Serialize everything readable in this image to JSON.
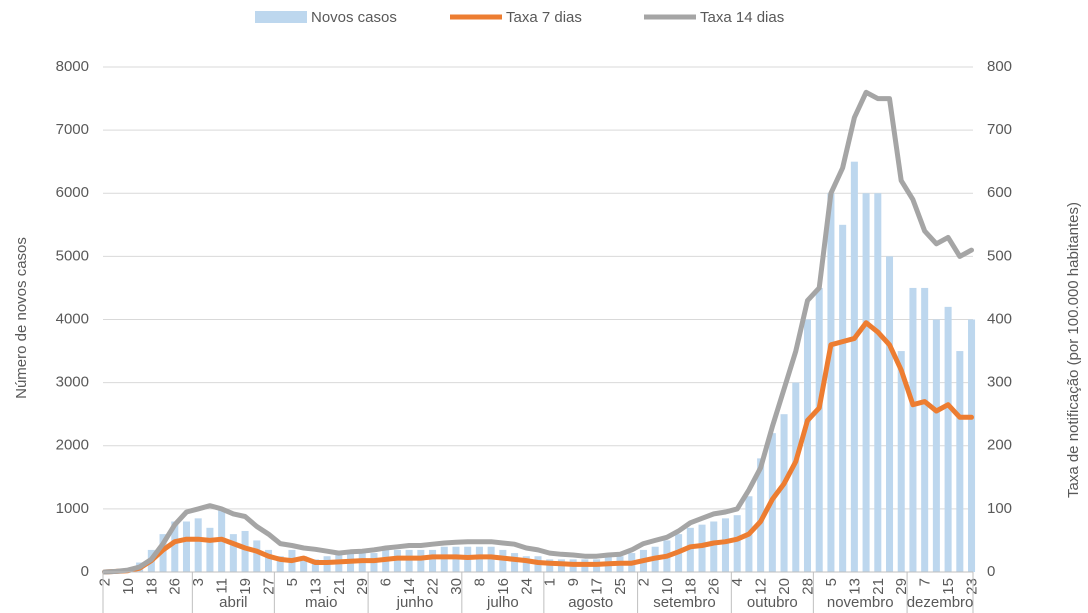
{
  "chart_data": {
    "type": "combo",
    "y_label": "Número de novos casos",
    "y2_label": "Taxa de notificação (por 100.000 habitantes)",
    "groups": [
      {
        "categories": [
          "2",
          null,
          "10",
          null,
          "18",
          null,
          "26",
          null
        ]
      },
      {
        "name": "abril",
        "categories": [
          "3",
          null,
          "11",
          null,
          "19",
          null,
          "27"
        ]
      },
      {
        "name": "maio",
        "categories": [
          null,
          "5",
          null,
          "13",
          null,
          "21",
          null,
          "29"
        ]
      },
      {
        "name": "junho",
        "categories": [
          null,
          "6",
          null,
          "14",
          null,
          "22",
          null,
          "30"
        ]
      },
      {
        "name": "julho",
        "categories": [
          null,
          "8",
          null,
          "16",
          null,
          "24",
          null
        ]
      },
      {
        "name": "agosto",
        "categories": [
          "1",
          null,
          "9",
          null,
          "17",
          null,
          "25",
          null
        ]
      },
      {
        "name": "setembro",
        "categories": [
          "2",
          null,
          "10",
          null,
          "18",
          null,
          "26",
          null
        ]
      },
      {
        "name": "outubro",
        "categories": [
          "4",
          null,
          "12",
          null,
          "20",
          null,
          "28"
        ]
      },
      {
        "name": "novembro",
        "categories": [
          null,
          "5",
          null,
          "13",
          null,
          "21",
          null,
          "29"
        ]
      },
      {
        "name": "dezembro",
        "categories": [
          null,
          "7",
          null,
          "15",
          null,
          "23"
        ]
      }
    ],
    "series": [
      {
        "name": "Novos casos",
        "type": "bar",
        "color": "#bdd7ee",
        "values": [
          0,
          10,
          40,
          150,
          350,
          600,
          800,
          800,
          850,
          700,
          1000,
          600,
          650,
          500,
          350,
          250,
          350,
          250,
          200,
          250,
          300,
          300,
          300,
          300,
          350,
          350,
          350,
          350,
          350,
          400,
          400,
          400,
          400,
          400,
          350,
          300,
          250,
          250,
          200,
          200,
          200,
          200,
          200,
          250,
          250,
          300,
          350,
          400,
          500,
          600,
          700,
          750,
          800,
          850,
          900,
          1200,
          1800,
          2200,
          2500,
          3000,
          4000,
          4500,
          6000,
          5500,
          6500,
          6000,
          6000,
          5000,
          3500,
          4500,
          4500,
          4000,
          4200,
          3500,
          4000
        ]
      },
      {
        "name": "Taxa 7 dias",
        "type": "line",
        "axis": "y2",
        "color": "#ed7d31",
        "values": [
          0,
          1,
          2,
          6,
          18,
          35,
          48,
          52,
          52,
          50,
          52,
          45,
          38,
          33,
          25,
          20,
          18,
          22,
          15,
          15,
          16,
          17,
          18,
          18,
          20,
          22,
          22,
          22,
          24,
          24,
          24,
          23,
          24,
          24,
          22,
          20,
          18,
          15,
          14,
          13,
          12,
          12,
          12,
          13,
          14,
          14,
          18,
          22,
          25,
          32,
          40,
          42,
          46,
          48,
          52,
          60,
          80,
          115,
          140,
          175,
          240,
          260,
          360,
          365,
          370,
          395,
          380,
          360,
          320,
          265,
          270,
          255,
          265,
          245,
          245
        ]
      },
      {
        "name": "Taxa 14 dias",
        "type": "line",
        "axis": "y2",
        "color": "#a5a5a5",
        "values": [
          0,
          1,
          3,
          8,
          20,
          45,
          75,
          95,
          100,
          105,
          100,
          92,
          88,
          72,
          60,
          45,
          42,
          38,
          36,
          33,
          30,
          32,
          33,
          35,
          38,
          40,
          42,
          42,
          44,
          46,
          47,
          48,
          48,
          48,
          46,
          44,
          38,
          35,
          30,
          28,
          27,
          25,
          25,
          27,
          28,
          35,
          45,
          50,
          55,
          65,
          78,
          85,
          92,
          95,
          100,
          130,
          165,
          230,
          290,
          350,
          430,
          450,
          600,
          640,
          720,
          760,
          750,
          750,
          620,
          590,
          540,
          520,
          530,
          500,
          510
        ]
      }
    ],
    "ylim": [
      0,
      8000
    ],
    "yticks": [
      0,
      1000,
      2000,
      3000,
      4000,
      5000,
      6000,
      7000,
      8000
    ],
    "y2lim": [
      0,
      800
    ],
    "y2ticks": [
      0,
      100,
      200,
      300,
      400,
      500,
      600,
      700,
      800
    ],
    "grid": true,
    "legend": "top"
  }
}
